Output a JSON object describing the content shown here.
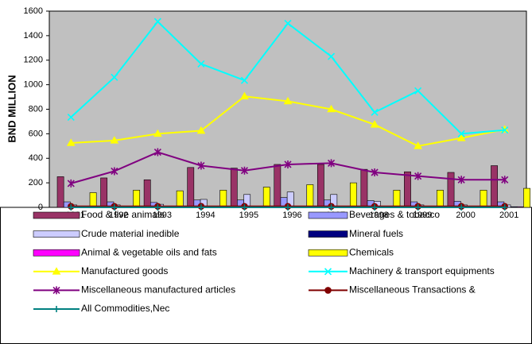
{
  "chart_data": {
    "type": "combo",
    "y_label": "BND MILLION",
    "categories": [
      "1991",
      "1992",
      "1993",
      "1994",
      "1995",
      "1996",
      "1997",
      "1998",
      "1999",
      "2000",
      "2001"
    ],
    "ylim": [
      0,
      1600
    ],
    "yticks": [
      0,
      200,
      400,
      600,
      800,
      1000,
      1200,
      1400,
      1600
    ],
    "grid": false,
    "series": [
      {
        "name": "Food & live animals",
        "type": "bar",
        "color": "#993366",
        "values": [
          250,
          240,
          225,
          325,
          320,
          350,
          350,
          310,
          290,
          285,
          340
        ]
      },
      {
        "name": "Beverages & tobacco",
        "type": "bar",
        "color": "#9999ff",
        "values": [
          45,
          45,
          40,
          60,
          60,
          80,
          60,
          55,
          45,
          50,
          45
        ]
      },
      {
        "name": "Crude material inedible",
        "type": "bar",
        "color": "#ccccff",
        "values": [
          20,
          20,
          25,
          65,
          105,
          125,
          105,
          50,
          20,
          20,
          20
        ]
      },
      {
        "name": "Mineral fuels",
        "type": "bar",
        "color": "#000080",
        "values": [
          5,
          5,
          5,
          5,
          5,
          5,
          5,
          5,
          5,
          5,
          5
        ]
      },
      {
        "name": "Animal & vegetable oils and fats",
        "type": "bar",
        "color": "#ff00ff",
        "values": [
          5,
          5,
          5,
          5,
          5,
          5,
          5,
          5,
          5,
          5,
          5
        ]
      },
      {
        "name": "Chemicals",
        "type": "bar",
        "color": "#ffff00",
        "values": [
          120,
          140,
          135,
          140,
          165,
          185,
          200,
          140,
          140,
          140,
          155
        ]
      },
      {
        "name": "Manufactured goods",
        "type": "line",
        "marker": "triangle",
        "color": "#ffff00",
        "values": [
          525,
          545,
          600,
          625,
          905,
          865,
          800,
          675,
          500,
          565,
          635
        ]
      },
      {
        "name": "Machinery & transport equipments",
        "type": "line",
        "marker": "x",
        "color": "#00ffff",
        "values": [
          735,
          1060,
          1515,
          1170,
          1035,
          1500,
          1230,
          775,
          950,
          600,
          630
        ]
      },
      {
        "name": "Miscellaneous manufactured articles",
        "type": "line",
        "marker": "star",
        "color": "#800080",
        "values": [
          195,
          295,
          450,
          340,
          300,
          350,
          360,
          285,
          255,
          225,
          225
        ]
      },
      {
        "name": "Miscellaneous Transactions &",
        "type": "line",
        "marker": "circle",
        "color": "#800000",
        "values": [
          8,
          8,
          8,
          8,
          8,
          8,
          8,
          8,
          8,
          8,
          8
        ]
      },
      {
        "name": "All Commodities,Nec",
        "type": "line",
        "marker": "plus",
        "color": "#008080",
        "values": [
          0,
          0,
          0,
          0,
          0,
          0,
          0,
          0,
          0,
          0,
          0
        ]
      }
    ]
  }
}
